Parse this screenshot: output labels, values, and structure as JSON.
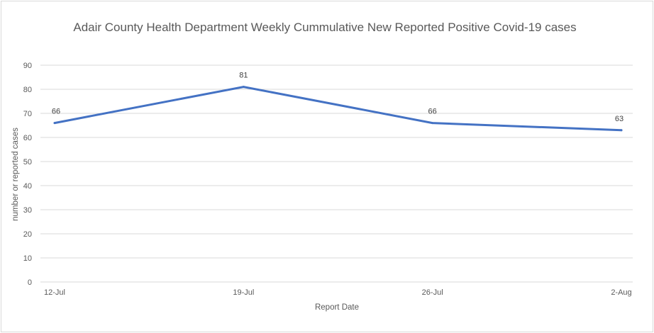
{
  "chart_data": {
    "type": "line",
    "title": "Adair County Health Department Weekly Cummulative New Reported Positive Covid-19 cases",
    "xlabel": "Report Date",
    "ylabel": "number or reported cases",
    "categories": [
      "12-Jul",
      "19-Jul",
      "26-Jul",
      "2-Aug"
    ],
    "series": [
      {
        "values": [
          66,
          81,
          66,
          63
        ],
        "color": "#4472c4"
      }
    ],
    "ylim": [
      0,
      90
    ],
    "yticks": [
      0,
      10,
      20,
      30,
      40,
      50,
      60,
      70,
      80,
      90
    ],
    "grid": true,
    "data_labels": true,
    "legend": "none"
  }
}
